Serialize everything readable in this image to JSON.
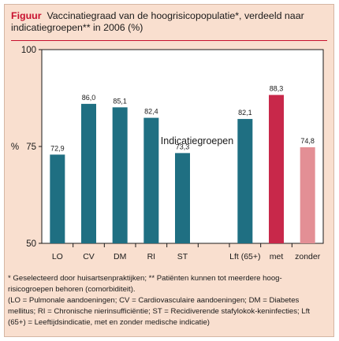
{
  "figure": {
    "label": "Figuur",
    "title": "Vaccinatiegraad van de hoogrisicopopulatie*, verdeeld naar indicatiegroepen** in 2006 (%)"
  },
  "chart_data": {
    "type": "bar",
    "title": "Vaccinatiegraad van de hoogrisicopopulatie*, verdeeld naar indicatiegroepen** in 2006 (%)",
    "xlabel": "Indicatiegroepen",
    "ylabel": "%",
    "ylim": [
      50,
      100
    ],
    "yticks": [
      50,
      75,
      100
    ],
    "grid": false,
    "categories": [
      "LO",
      "CV",
      "DM",
      "RI",
      "ST",
      "Lft (65+)",
      "met",
      "zonder"
    ],
    "values": [
      72.9,
      86.0,
      85.1,
      82.4,
      73.3,
      82.1,
      88.3,
      74.8
    ],
    "value_labels": [
      "72,9",
      "86,0",
      "85,1",
      "82,4",
      "73,3",
      "82,1",
      "88,3",
      "74,8"
    ],
    "colors": [
      "#1f6f82",
      "#1f6f82",
      "#1f6f82",
      "#1f6f82",
      "#1f6f82",
      "#1f6f82",
      "#c8284a",
      "#e38f95"
    ]
  },
  "footnote": {
    "line1": "* Geselecteerd door huisartsenpraktijken; ** Patiënten kunnen tot meerdere hoog-risicogroepen behoren (comorbiditeit).",
    "line2": "(LO = Pulmonale aandoeningen; CV = Cardiovasculaire aandoeningen; DM = Diabetes mellitus; RI = Chronische nierinsufficiëntie; ST = Recidiverende stafylokok-keninfecties; Lft (65+) = Leeftijdsindicatie, met en zonder medische indicatie)"
  }
}
